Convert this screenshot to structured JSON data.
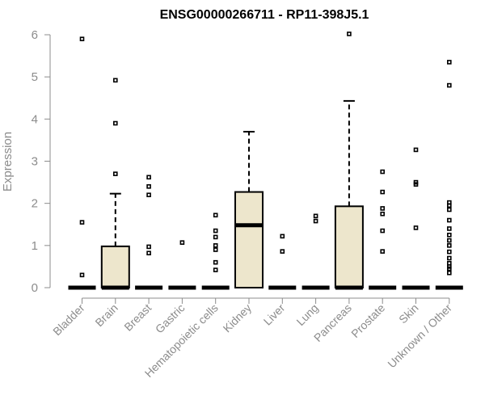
{
  "chart_data": {
    "type": "boxplot",
    "title": "ENSG00000266711 - RP11-398J5.1",
    "ylabel": "Expression",
    "ylim": [
      0,
      6
    ],
    "yticks": [
      0,
      1,
      2,
      3,
      4,
      5,
      6
    ],
    "box_color": "#ede6cc",
    "categories": [
      "Bladder",
      "Brain",
      "Breast",
      "Gastric",
      "Hematopoietic cells",
      "Kidney",
      "Liver",
      "Lung",
      "Pancreas",
      "Prostate",
      "Skin",
      "Unknown / Other"
    ],
    "series": [
      {
        "category": "Bladder",
        "min": 0,
        "q1": 0,
        "median": 0,
        "q3": 0,
        "max": 0,
        "outliers": [
          5.9,
          1.55,
          0.3
        ]
      },
      {
        "category": "Brain",
        "min": 0,
        "q1": 0,
        "median": 0,
        "q3": 0.98,
        "max": 2.23,
        "outliers": [
          4.92,
          3.9,
          2.7
        ]
      },
      {
        "category": "Breast",
        "min": 0,
        "q1": 0,
        "median": 0,
        "q3": 0,
        "max": 0,
        "outliers": [
          2.62,
          2.4,
          2.2,
          0.97,
          0.82
        ]
      },
      {
        "category": "Gastric",
        "min": 0,
        "q1": 0,
        "median": 0,
        "q3": 0,
        "max": 0,
        "outliers": [
          1.07
        ]
      },
      {
        "category": "Hematopoietic cells",
        "min": 0,
        "q1": 0,
        "median": 0,
        "q3": 0,
        "max": 0,
        "outliers": [
          1.72,
          1.35,
          1.2,
          1.0,
          0.9,
          0.6,
          0.42
        ]
      },
      {
        "category": "Kidney",
        "min": 0,
        "q1": 0,
        "median": 1.48,
        "q3": 2.27,
        "max": 3.7,
        "outliers": []
      },
      {
        "category": "Liver",
        "min": 0,
        "q1": 0,
        "median": 0,
        "q3": 0,
        "max": 0,
        "outliers": [
          1.22,
          0.86
        ]
      },
      {
        "category": "Lung",
        "min": 0,
        "q1": 0,
        "median": 0,
        "q3": 0,
        "max": 0,
        "outliers": [
          1.7,
          1.58
        ]
      },
      {
        "category": "Pancreas",
        "min": 0,
        "q1": 0,
        "median": 0,
        "q3": 1.93,
        "max": 4.43,
        "outliers": [
          6.02
        ]
      },
      {
        "category": "Prostate",
        "min": 0,
        "q1": 0,
        "median": 0,
        "q3": 0,
        "max": 0,
        "outliers": [
          2.75,
          2.27,
          1.88,
          1.75,
          1.35,
          0.86
        ]
      },
      {
        "category": "Skin",
        "min": 0,
        "q1": 0,
        "median": 0,
        "q3": 0,
        "max": 0,
        "outliers": [
          3.27,
          2.5,
          2.45,
          1.42
        ]
      },
      {
        "category": "Unknown / Other",
        "min": 0,
        "q1": 0,
        "median": 0,
        "q3": 0,
        "max": 0,
        "outliers": [
          5.35,
          4.8,
          2.02,
          1.95,
          1.85,
          1.6,
          1.4,
          1.25,
          1.12,
          1.0,
          0.85,
          0.7,
          0.58,
          0.5,
          0.45,
          0.35
        ]
      }
    ]
  }
}
